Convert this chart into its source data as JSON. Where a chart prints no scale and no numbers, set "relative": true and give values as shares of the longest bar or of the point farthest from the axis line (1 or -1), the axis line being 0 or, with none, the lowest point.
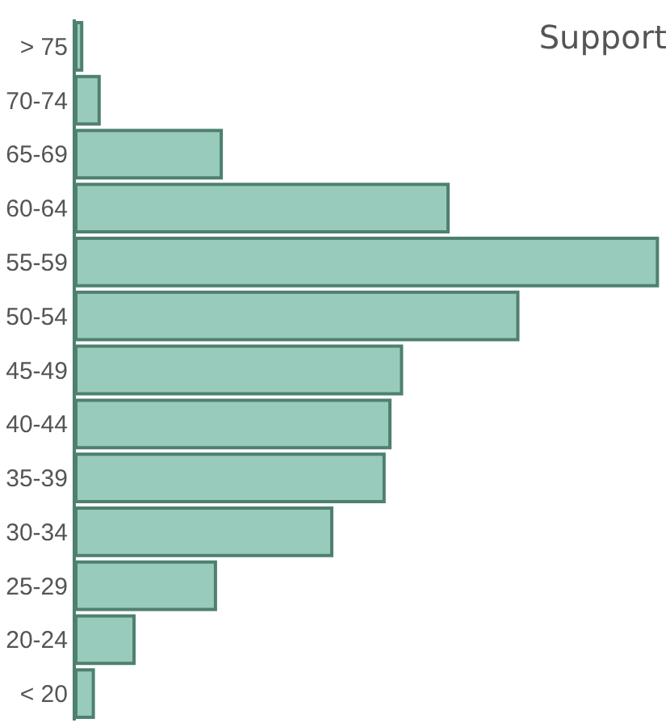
{
  "chart_data": {
    "type": "bar",
    "orientation": "horizontal",
    "relative": true,
    "title": "Support",
    "categories": [
      "> 75",
      "70-74",
      "65-69",
      "60-64",
      "55-59",
      "50-54",
      "45-49",
      "40-44",
      "35-39",
      "30-34",
      "25-29",
      "20-24",
      "< 20"
    ],
    "values": [
      0.01,
      0.04,
      0.25,
      0.64,
      1,
      0.76,
      0.56,
      0.54,
      0.53,
      0.44,
      0.24,
      0.1,
      0.03
    ],
    "color": "#98cbbb"
  }
}
